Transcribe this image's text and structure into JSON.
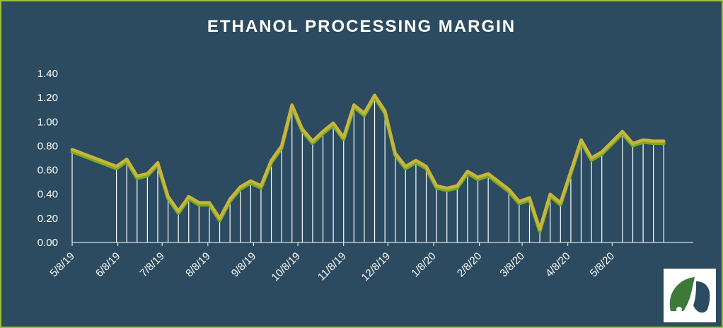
{
  "chart_data": {
    "type": "line",
    "title": "ETHANOL PROCESSING MARGIN",
    "xlabel": "",
    "ylabel": "",
    "ylim": [
      0,
      1.4
    ],
    "yticks": [
      "0.00",
      "0.20",
      "0.40",
      "0.60",
      "0.80",
      "1.00",
      "1.20",
      "1.40"
    ],
    "xtick_labels": [
      "5/8/19",
      "6/8/19",
      "7/8/19",
      "8/8/19",
      "9/8/19",
      "10/8/19",
      "11/8/19",
      "12/8/19",
      "1/8/20",
      "2/8/20",
      "3/8/20",
      "4/8/20",
      "5/8/20"
    ],
    "xrange": [
      "2019-05-08",
      "2020-07-02"
    ],
    "grid": false,
    "legend": "none",
    "series": [
      {
        "color": "#c8b53a",
        "shadow_color": "#7aaa26",
        "drop_line_color": "#ffffff",
        "x": [
          "2019-05-08",
          "2019-06-07",
          "2019-06-14",
          "2019-06-21",
          "2019-06-28",
          "2019-07-05",
          "2019-07-12",
          "2019-07-19",
          "2019-07-26",
          "2019-08-02",
          "2019-08-09",
          "2019-08-16",
          "2019-08-23",
          "2019-08-30",
          "2019-09-06",
          "2019-09-13",
          "2019-09-20",
          "2019-09-27",
          "2019-10-04",
          "2019-10-11",
          "2019-10-18",
          "2019-10-25",
          "2019-11-01",
          "2019-11-08",
          "2019-11-15",
          "2019-11-22",
          "2019-11-29",
          "2019-12-06",
          "2019-12-13",
          "2019-12-20",
          "2019-12-27",
          "2020-01-03",
          "2020-01-10",
          "2020-01-17",
          "2020-01-24",
          "2020-01-31",
          "2020-02-07",
          "2020-02-14",
          "2020-02-28",
          "2020-03-06",
          "2020-03-13",
          "2020-03-20",
          "2020-03-27",
          "2020-04-03",
          "2020-04-10",
          "2020-04-17",
          "2020-04-24",
          "2020-05-01",
          "2020-05-15",
          "2020-05-22",
          "2020-05-29",
          "2020-06-05",
          "2020-06-12"
        ],
        "y": [
          0.77,
          0.63,
          0.69,
          0.55,
          0.57,
          0.66,
          0.38,
          0.26,
          0.38,
          0.33,
          0.33,
          0.2,
          0.36,
          0.46,
          0.51,
          0.47,
          0.68,
          0.8,
          1.14,
          0.94,
          0.84,
          0.92,
          0.99,
          0.87,
          1.14,
          1.07,
          1.22,
          1.09,
          0.74,
          0.63,
          0.68,
          0.63,
          0.47,
          0.45,
          0.47,
          0.59,
          0.54,
          0.57,
          0.44,
          0.34,
          0.37,
          0.11,
          0.4,
          0.33,
          0.59,
          0.85,
          0.7,
          0.75,
          0.92,
          0.82,
          0.85,
          0.84,
          0.84
        ]
      }
    ]
  },
  "logo": {
    "name": "company-logo",
    "colors": [
      "#3d7a3a",
      "#2c4b60"
    ]
  }
}
